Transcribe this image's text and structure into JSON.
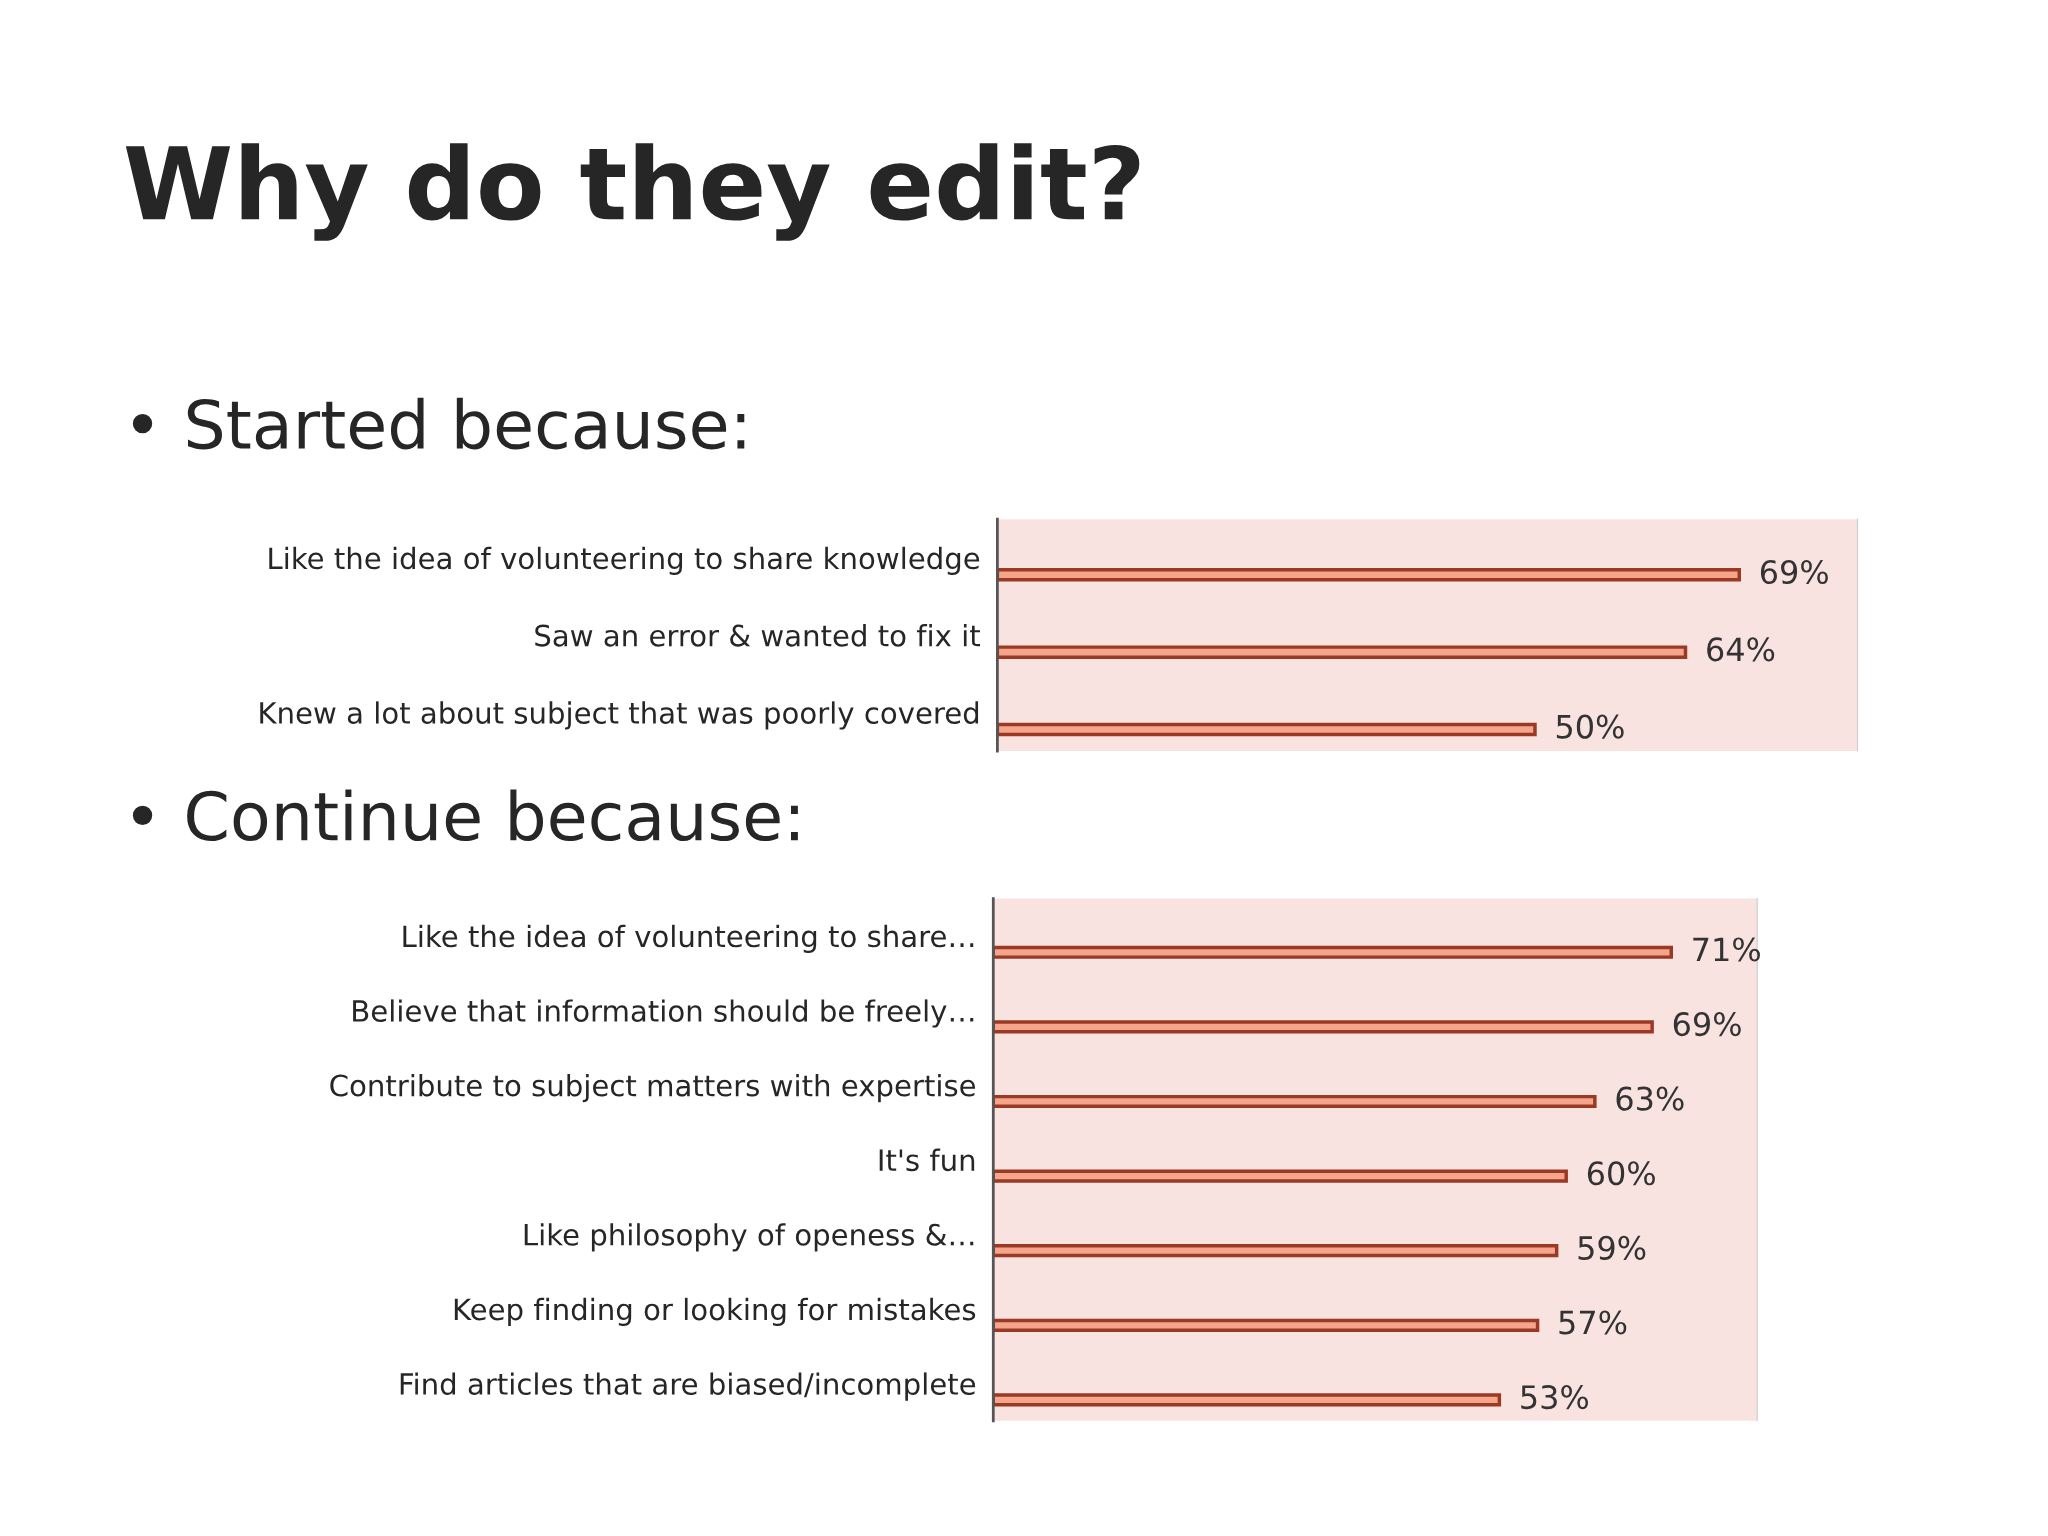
{
  "chart_data": [
    {
      "type": "bar",
      "orientation": "horizontal",
      "title": "Why do they edit?",
      "subtitle": "• Started because:",
      "categories": [
        "Like the idea of volunteering to share knowledge",
        "Saw an error & wanted to fix it",
        "Knew a lot about subject that was poorly covered"
      ],
      "values": [
        69,
        64,
        50
      ],
      "value_labels": [
        "69%",
        "64%",
        "50%"
      ],
      "color": "#f4a58c",
      "xlim": [
        0,
        80
      ],
      "tick_labels": "y"
    },
    {
      "type": "bar",
      "orientation": "horizontal",
      "title": "• Continue because:",
      "categories": [
        "Like the idea of volunteering to share…",
        "Believe that information should be freely…",
        "Contribute to subject matters with expertise",
        "It's fun",
        "Like philosophy of openess &…",
        "Keep finding or looking for mistakes",
        "Find articles that are biased/incomplete"
      ],
      "values": [
        71,
        69,
        63,
        60,
        59,
        57,
        53
      ],
      "value_labels": [
        "71%",
        "69%",
        "63%",
        "60%",
        "59%",
        "57%",
        "53%"
      ],
      "color": "#f4a58c",
      "xlim": [
        0,
        80
      ],
      "tick_labels": "y"
    }
  ]
}
